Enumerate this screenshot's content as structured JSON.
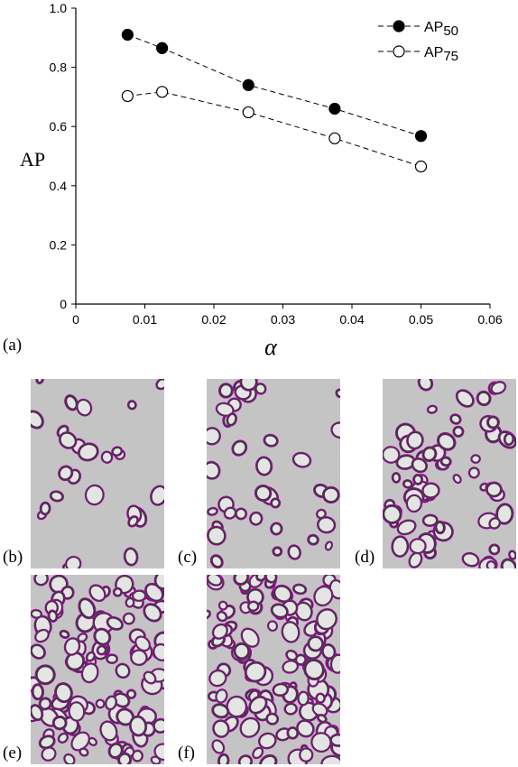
{
  "chart_data": {
    "type": "line",
    "x": [
      0.0075,
      0.0125,
      0.025,
      0.0375,
      0.05
    ],
    "series": [
      {
        "name": "AP50",
        "name_base": "AP",
        "name_sub": "50",
        "values": [
          0.91,
          0.865,
          0.74,
          0.66,
          0.568
        ],
        "marker": "filled-circle"
      },
      {
        "name": "AP75",
        "name_base": "AP",
        "name_sub": "75",
        "values": [
          0.703,
          0.717,
          0.648,
          0.56,
          0.465
        ],
        "marker": "open-circle"
      }
    ],
    "xlabel": "α",
    "ylabel": "AP",
    "xlim": [
      0,
      0.06
    ],
    "ylim": [
      0,
      1.0
    ],
    "xticks": [
      "0",
      "0.01",
      "0.02",
      "0.03",
      "0.04",
      "0.05",
      "0.06"
    ],
    "yticks": [
      "0",
      "0.2",
      "0.4",
      "0.6",
      "0.8",
      "1.0"
    ],
    "xtick_values": [
      0,
      0.01,
      0.02,
      0.03,
      0.04,
      0.05,
      0.06
    ],
    "ytick_values": [
      0,
      0.2,
      0.4,
      0.6,
      0.8,
      1.0
    ],
    "line_style": "dashed",
    "grid": false,
    "legend_position": "top-right"
  },
  "panels": {
    "a": "(a)",
    "b": "(b)",
    "c": "(c)",
    "d": "(d)",
    "e": "(e)",
    "f": "(f)"
  },
  "colors": {
    "detection_outline": "#b000b0",
    "image_background": "#c4c4c4",
    "bubble_shadow": "#3a3a3a"
  }
}
